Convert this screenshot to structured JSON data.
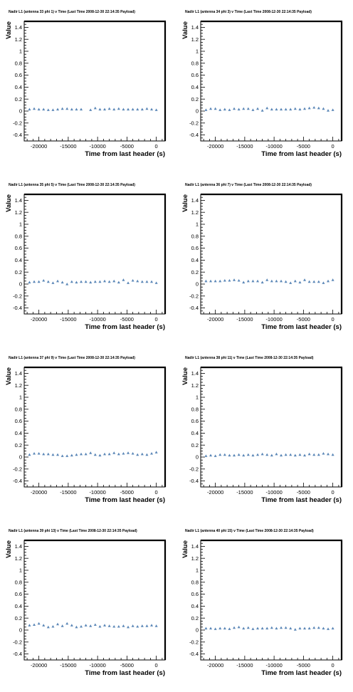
{
  "chart_data": [
    {
      "type": "scatter",
      "title": "Nadir L1 (antenna 33 phi 1) v Time (Last Time 2008-12-30 22:14:35 Payload)",
      "xlabel": "Time from last header (s)",
      "ylabel": "Value",
      "xlim": [
        -22500,
        1500
      ],
      "ylim": [
        -0.5,
        1.5
      ],
      "xticks": [
        "-20000",
        "-15000",
        "-10000",
        "-5000",
        "0"
      ],
      "yticks": [
        "-0.4",
        "-0.2",
        "0",
        "0.2",
        "0.4",
        "0.6",
        "0.8",
        "1",
        "1.2",
        "1.4"
      ],
      "marker_color": "#5b87b7",
      "x": [
        -21600,
        -20800,
        -20000,
        -19200,
        -18400,
        -17600,
        -16800,
        -16000,
        -15200,
        -14400,
        -13600,
        -12800,
        -11200,
        -10400,
        -9600,
        -8800,
        -8000,
        -7200,
        -6400,
        -5600,
        -4800,
        -4000,
        -3200,
        -2400,
        -1600,
        -800,
        0
      ],
      "y": [
        0.03,
        0.04,
        0.03,
        0.03,
        0.02,
        0.02,
        0.03,
        0.04,
        0.04,
        0.03,
        0.03,
        0.03,
        0.02,
        0.05,
        0.03,
        0.03,
        0.04,
        0.03,
        0.04,
        0.03,
        0.03,
        0.03,
        0.03,
        0.03,
        0.04,
        0.03,
        0.02
      ]
    },
    {
      "type": "scatter",
      "title": "Nadir L1 (antenna 34 phi 3) v Time (Last Time 2008-12-30 22:14:35 Payload)",
      "xlabel": "Time from last header (s)",
      "ylabel": "Value",
      "xlim": [
        -22500,
        1500
      ],
      "ylim": [
        -0.5,
        1.5
      ],
      "xticks": [
        "-20000",
        "-15000",
        "-10000",
        "-5000",
        "0"
      ],
      "yticks": [
        "-0.4",
        "-0.2",
        "0",
        "0.2",
        "0.4",
        "0.6",
        "0.8",
        "1",
        "1.2",
        "1.4"
      ],
      "marker_color": "#5b87b7",
      "x": [
        -21600,
        -20800,
        -20000,
        -19200,
        -18400,
        -17600,
        -16800,
        -16000,
        -15200,
        -14400,
        -13600,
        -12800,
        -12000,
        -11200,
        -10400,
        -9600,
        -8800,
        -8000,
        -7200,
        -6400,
        -5600,
        -4800,
        -4000,
        -3200,
        -2400,
        -1600,
        -800,
        0
      ],
      "y": [
        0.02,
        0.04,
        0.04,
        0.02,
        0.03,
        0.02,
        0.04,
        0.03,
        0.04,
        0.04,
        0.02,
        0.04,
        0.01,
        0.05,
        0.03,
        0.03,
        0.03,
        0.03,
        0.03,
        0.04,
        0.03,
        0.04,
        0.05,
        0.06,
        0.05,
        0.04,
        0.01,
        0.02
      ]
    },
    {
      "type": "scatter",
      "title": "Nadir L1 (antenna 35 phi 5) v Time (Last Time 2008-12-30 22:14:35 Payload)",
      "xlabel": "Time from last header (s)",
      "ylabel": "Value",
      "xlim": [
        -22500,
        1500
      ],
      "ylim": [
        -0.5,
        1.5
      ],
      "xticks": [
        "-20000",
        "-15000",
        "-10000",
        "-5000",
        "0"
      ],
      "yticks": [
        "-0.4",
        "-0.2",
        "0",
        "0.2",
        "0.4",
        "0.6",
        "0.8",
        "1",
        "1.2",
        "1.4"
      ],
      "marker_color": "#5b87b7",
      "x": [
        -21600,
        -20800,
        -20000,
        -19200,
        -18400,
        -17600,
        -16800,
        -16000,
        -15200,
        -14400,
        -13600,
        -12800,
        -12000,
        -11200,
        -10400,
        -9600,
        -8800,
        -8000,
        -7200,
        -6400,
        -5600,
        -4800,
        -4000,
        -3200,
        -2400,
        -1600,
        -800,
        0
      ],
      "y": [
        0.03,
        0.04,
        0.04,
        0.06,
        0.04,
        0.02,
        0.05,
        0.03,
        0.0,
        0.04,
        0.03,
        0.04,
        0.04,
        0.03,
        0.04,
        0.04,
        0.05,
        0.04,
        0.05,
        0.03,
        0.07,
        0.02,
        0.06,
        0.05,
        0.04,
        0.04,
        0.04,
        0.02
      ]
    },
    {
      "type": "scatter",
      "title": "Nadir L1 (antenna 36 phi 7) v Time (Last Time 2008-12-30 22:14:35 Payload)",
      "xlabel": "Time from last header (s)",
      "ylabel": "Value",
      "xlim": [
        -22500,
        1500
      ],
      "ylim": [
        -0.5,
        1.5
      ],
      "xticks": [
        "-20000",
        "-15000",
        "-10000",
        "-5000",
        "0"
      ],
      "yticks": [
        "-0.4",
        "-0.2",
        "0",
        "0.2",
        "0.4",
        "0.6",
        "0.8",
        "1",
        "1.2",
        "1.4"
      ],
      "marker_color": "#5b87b7",
      "x": [
        -21600,
        -20800,
        -20000,
        -19200,
        -18400,
        -17600,
        -16800,
        -16000,
        -15200,
        -14400,
        -13600,
        -12800,
        -12000,
        -11200,
        -10400,
        -9600,
        -8800,
        -8000,
        -7200,
        -6400,
        -5600,
        -4800,
        -4000,
        -3200,
        -2400,
        -1600,
        -800,
        0
      ],
      "y": [
        0.05,
        0.05,
        0.05,
        0.05,
        0.06,
        0.06,
        0.07,
        0.06,
        0.03,
        0.05,
        0.05,
        0.05,
        0.03,
        0.07,
        0.05,
        0.05,
        0.05,
        0.04,
        0.02,
        0.05,
        0.03,
        0.07,
        0.04,
        0.04,
        0.04,
        0.02,
        0.05,
        0.07
      ]
    },
    {
      "type": "scatter",
      "title": "Nadir L1 (antenna 37 phi 9) v Time (Last Time 2008-12-30 22:14:35 Payload)",
      "xlabel": "Time from last header (s)",
      "ylabel": "Value",
      "xlim": [
        -22500,
        1500
      ],
      "ylim": [
        -0.5,
        1.5
      ],
      "xticks": [
        "-20000",
        "-15000",
        "-10000",
        "-5000",
        "0"
      ],
      "yticks": [
        "-0.4",
        "-0.2",
        "0",
        "0.2",
        "0.4",
        "0.6",
        "0.8",
        "1",
        "1.2",
        "1.4"
      ],
      "marker_color": "#5b87b7",
      "x": [
        -21600,
        -20800,
        -20000,
        -19200,
        -18400,
        -17600,
        -16800,
        -16000,
        -15200,
        -14400,
        -13600,
        -12800,
        -12000,
        -11200,
        -10400,
        -9600,
        -8800,
        -8000,
        -7200,
        -6400,
        -5600,
        -4800,
        -4000,
        -3200,
        -2400,
        -1600,
        -800,
        0
      ],
      "y": [
        0.04,
        0.06,
        0.06,
        0.05,
        0.05,
        0.04,
        0.04,
        0.02,
        0.02,
        0.03,
        0.04,
        0.05,
        0.05,
        0.07,
        0.04,
        0.03,
        0.05,
        0.05,
        0.07,
        0.05,
        0.06,
        0.07,
        0.06,
        0.04,
        0.05,
        0.04,
        0.06,
        0.08
      ]
    },
    {
      "type": "scatter",
      "title": "Nadir L1 (antenna 38 phi 11) v Time (Last Time 2008-12-30 22:14:35 Payload)",
      "xlabel": "Time from last header (s)",
      "ylabel": "Value",
      "xlim": [
        -22500,
        1500
      ],
      "ylim": [
        -0.5,
        1.5
      ],
      "xticks": [
        "-20000",
        "-15000",
        "-10000",
        "-5000",
        "0"
      ],
      "yticks": [
        "-0.4",
        "-0.2",
        "0",
        "0.2",
        "0.4",
        "0.6",
        "0.8",
        "1",
        "1.2",
        "1.4"
      ],
      "marker_color": "#5b87b7",
      "x": [
        -21600,
        -20800,
        -20000,
        -19200,
        -18400,
        -17600,
        -16800,
        -16000,
        -15200,
        -14400,
        -13600,
        -12800,
        -12000,
        -11200,
        -10400,
        -9600,
        -8800,
        -8000,
        -7200,
        -6400,
        -5600,
        -4800,
        -4000,
        -3200,
        -2400,
        -1600,
        -800,
        0
      ],
      "y": [
        0.02,
        0.03,
        0.02,
        0.04,
        0.04,
        0.03,
        0.03,
        0.04,
        0.03,
        0.04,
        0.03,
        0.04,
        0.05,
        0.04,
        0.03,
        0.05,
        0.03,
        0.04,
        0.04,
        0.03,
        0.04,
        0.03,
        0.05,
        0.04,
        0.04,
        0.06,
        0.05,
        0.04
      ]
    },
    {
      "type": "scatter",
      "title": "Nadir L1 (antenna 39 phi 13) v Time (Last Time 2008-12-30 22:14:35 Payload)",
      "xlabel": "Time from last header (s)",
      "ylabel": "Value",
      "xlim": [
        -22500,
        1500
      ],
      "ylim": [
        -0.5,
        1.5
      ],
      "xticks": [
        "-20000",
        "-15000",
        "-10000",
        "-5000",
        "0"
      ],
      "yticks": [
        "-0.4",
        "-0.2",
        "0",
        "0.2",
        "0.4",
        "0.6",
        "0.8",
        "1",
        "1.2",
        "1.4"
      ],
      "marker_color": "#5b87b7",
      "x": [
        -21600,
        -20800,
        -20000,
        -19200,
        -18400,
        -17600,
        -16800,
        -16000,
        -15200,
        -14400,
        -13600,
        -12800,
        -12000,
        -11200,
        -10400,
        -9600,
        -8800,
        -8000,
        -7200,
        -6400,
        -5600,
        -4800,
        -4000,
        -3200,
        -2400,
        -1600,
        -800,
        0
      ],
      "y": [
        0.08,
        0.09,
        0.11,
        0.08,
        0.05,
        0.06,
        0.1,
        0.07,
        0.11,
        0.08,
        0.05,
        0.06,
        0.08,
        0.07,
        0.09,
        0.06,
        0.08,
        0.07,
        0.06,
        0.06,
        0.07,
        0.05,
        0.07,
        0.06,
        0.07,
        0.07,
        0.08,
        0.07
      ]
    },
    {
      "type": "scatter",
      "title": "Nadir L1 (antenna 40 phi 15) v Time (Last Time 2008-12-30 22:14:35 Payload)",
      "xlabel": "Time from last header (s)",
      "ylabel": "Value",
      "xlim": [
        -22500,
        1500
      ],
      "ylim": [
        -0.5,
        1.5
      ],
      "xticks": [
        "-20000",
        "-15000",
        "-10000",
        "-5000",
        "0"
      ],
      "yticks": [
        "-0.4",
        "-0.2",
        "0",
        "0.2",
        "0.4",
        "0.6",
        "0.8",
        "1",
        "1.2",
        "1.4"
      ],
      "marker_color": "#5b87b7",
      "x": [
        -21600,
        -20800,
        -20000,
        -19200,
        -18400,
        -17600,
        -16800,
        -16000,
        -15200,
        -14400,
        -13600,
        -12800,
        -12000,
        -11200,
        -10400,
        -9600,
        -8800,
        -8000,
        -7200,
        -6400,
        -5600,
        -4800,
        -4000,
        -3200,
        -2400,
        -1600,
        -800,
        0
      ],
      "y": [
        0.03,
        0.03,
        0.02,
        0.03,
        0.03,
        0.02,
        0.04,
        0.05,
        0.03,
        0.04,
        0.02,
        0.03,
        0.03,
        0.03,
        0.04,
        0.03,
        0.04,
        0.04,
        0.03,
        0.01,
        0.03,
        0.03,
        0.03,
        0.04,
        0.04,
        0.03,
        0.02,
        0.03
      ]
    }
  ]
}
